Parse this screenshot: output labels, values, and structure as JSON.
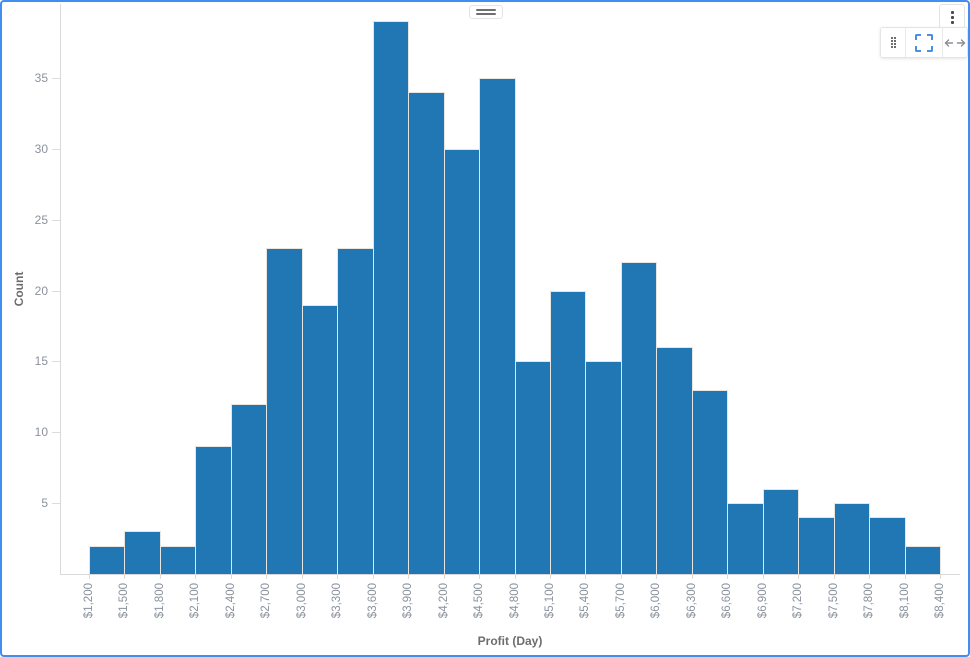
{
  "colors": {
    "canvas_border": "#418df0",
    "bar_fill": "#2176b4",
    "bar_stroke": "#e8e5e0",
    "axis_line": "#d9d9d9",
    "tick_mark": "#dcdcdc",
    "tick_label": "#8b929c",
    "axis_title": "#6d6d6d",
    "box_select_blue": "#4a90e2"
  },
  "header": {
    "drag_handle_icon": "drag-handle-icon",
    "menu_icon": "kebab-menu-icon"
  },
  "toolbar": {
    "tools": [
      {
        "id": "drag",
        "icon": "drag-dots-icon",
        "active": false
      },
      {
        "id": "box-select",
        "icon": "box-select-icon",
        "active": true
      },
      {
        "id": "pan",
        "icon": "pan-horizontal-icon",
        "active": false
      }
    ]
  },
  "chart_data": {
    "type": "bar",
    "subtype": "histogram",
    "title": "",
    "xlabel": "Profit (Day)",
    "ylabel": "Count",
    "x_tick_labels": [
      "$1,200",
      "$1,500",
      "$1,800",
      "$2,100",
      "$2,400",
      "$2,700",
      "$3,000",
      "$3,300",
      "$3,600",
      "$3,900",
      "$4,200",
      "$4,500",
      "$4,800",
      "$5,100",
      "$5,400",
      "$5,700",
      "$6,000",
      "$6,300",
      "$6,600",
      "$6,900",
      "$7,200",
      "$7,500",
      "$7,800",
      "$8,100",
      "$8,400"
    ],
    "bin_width": 300,
    "values": [
      2,
      3,
      2,
      9,
      12,
      23,
      19,
      23,
      39,
      34,
      30,
      35,
      15,
      20,
      15,
      22,
      16,
      13,
      5,
      6,
      4,
      5,
      4,
      2
    ],
    "y_ticks": [
      5,
      10,
      15,
      20,
      25,
      30,
      35
    ],
    "ylim": [
      0,
      40
    ],
    "grid": false,
    "legend": false,
    "bar_color": "#2176b4"
  }
}
